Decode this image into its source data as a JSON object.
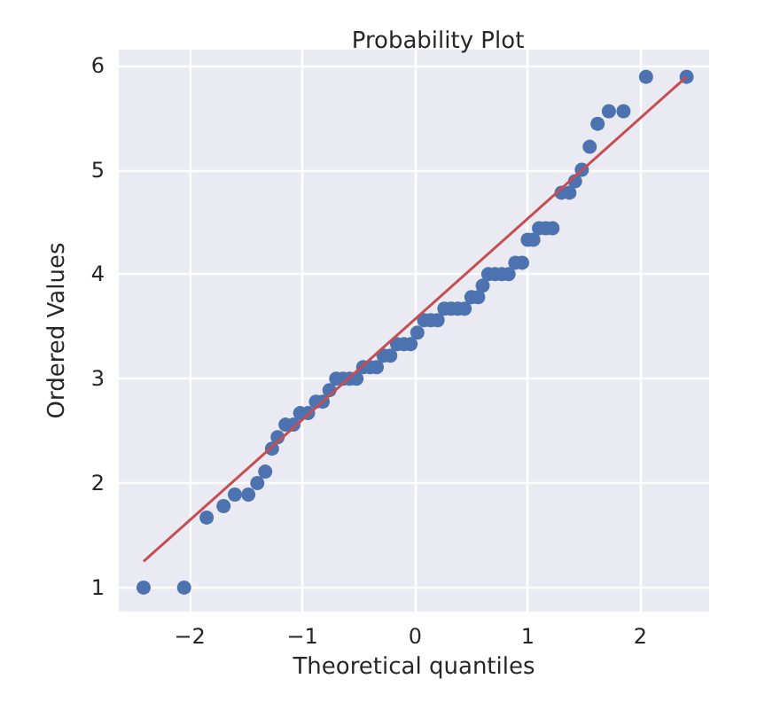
{
  "chart_data": {
    "type": "scatter",
    "title": "Probability Plot",
    "xlabel": "Theoretical quantiles",
    "ylabel": "Ordered Values",
    "xlim": [
      -2.63,
      2.61
    ],
    "xticks": [
      -2,
      -1,
      0,
      1,
      2
    ],
    "ylim": [
      0.77,
      6.15
    ],
    "yticks": [
      1,
      2,
      3,
      4,
      5,
      6
    ],
    "grid": true,
    "series": [
      {
        "marker": "circle",
        "color": "#4c72b0",
        "x": [
          -2.41,
          -2.05,
          -1.85,
          -1.7,
          -1.6,
          -1.48,
          -1.4,
          -1.33,
          -1.27,
          -1.22,
          -1.15,
          -1.08,
          -1.02,
          -0.95,
          -0.88,
          -0.82,
          -0.76,
          -0.7,
          -0.64,
          -0.58,
          -0.52,
          -0.46,
          -0.4,
          -0.34,
          -0.28,
          -0.22,
          -0.16,
          -0.1,
          -0.04,
          0.02,
          0.08,
          0.14,
          0.2,
          0.26,
          0.32,
          0.38,
          0.44,
          0.5,
          0.56,
          0.6,
          0.65,
          0.71,
          0.77,
          0.83,
          0.89,
          0.95,
          1.0,
          1.05,
          1.1,
          1.16,
          1.22,
          1.3,
          1.37,
          1.42,
          1.48,
          1.55,
          1.62,
          1.72,
          1.85,
          2.05,
          2.41
        ],
        "values": [
          1.0,
          1.0,
          1.67,
          1.78,
          1.89,
          1.89,
          2.0,
          2.11,
          2.33,
          2.44,
          2.56,
          2.56,
          2.67,
          2.67,
          2.78,
          2.78,
          2.89,
          3.0,
          3.0,
          3.0,
          3.0,
          3.11,
          3.11,
          3.11,
          3.22,
          3.22,
          3.33,
          3.33,
          3.33,
          3.44,
          3.56,
          3.56,
          3.56,
          3.67,
          3.67,
          3.67,
          3.67,
          3.78,
          3.78,
          3.89,
          4.0,
          4.0,
          4.0,
          4.0,
          4.11,
          4.11,
          4.33,
          4.33,
          4.44,
          4.44,
          4.44,
          4.78,
          4.78,
          4.89,
          5.0,
          5.22,
          5.44,
          5.56,
          5.56,
          5.89,
          5.89
        ]
      },
      {
        "type": "line",
        "marker": "none",
        "color": "#c44e52",
        "x": [
          -2.41,
          2.41
        ],
        "values": [
          1.25,
          5.89
        ]
      }
    ]
  }
}
